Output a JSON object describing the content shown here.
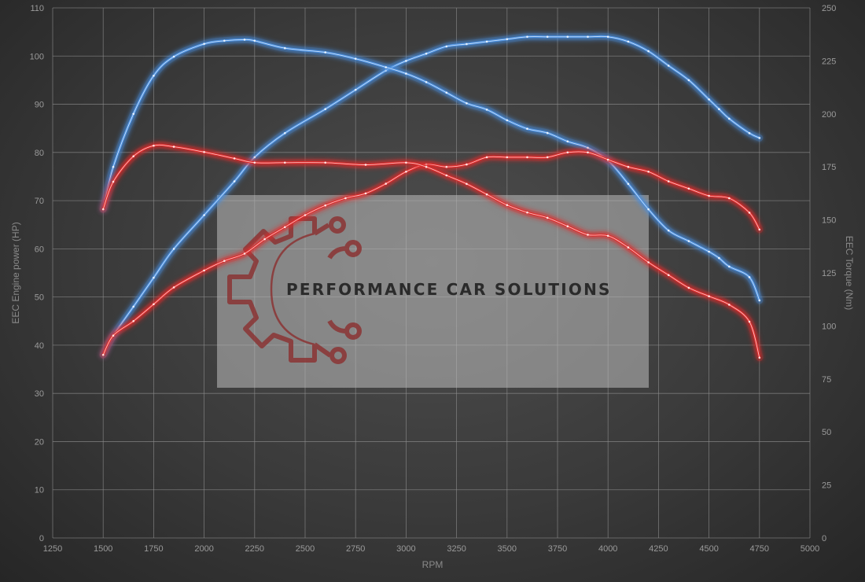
{
  "chart_data": {
    "type": "line",
    "xlabel": "RPM",
    "ylabel_left": "EEC Engine power (HP)",
    "ylabel_right": "EEC Torque (Nm)",
    "xlim": [
      1250,
      5000
    ],
    "ylim_left": [
      0,
      110
    ],
    "ylim_right": [
      0,
      250
    ],
    "x_ticks": [
      1250,
      1500,
      1750,
      2000,
      2250,
      2500,
      2750,
      3000,
      3250,
      3500,
      3750,
      4000,
      4250,
      4500,
      4750,
      5000
    ],
    "y_ticks_left": [
      0,
      10,
      20,
      30,
      40,
      50,
      60,
      70,
      80,
      90,
      100,
      110
    ],
    "y_ticks_right": [
      0,
      25,
      50,
      75,
      100,
      125,
      150,
      175,
      200,
      225,
      250
    ],
    "grid": true,
    "series": [
      {
        "axis": "left",
        "color": "#4a8fe0",
        "x": [
          1500,
          1550,
          1650,
          1750,
          1850,
          2000,
          2150,
          2250,
          2400,
          2600,
          2750,
          2900,
          3000,
          3100,
          3200,
          3300,
          3400,
          3500,
          3600,
          3700,
          3800,
          3900,
          4000,
          4100,
          4200,
          4300,
          4400,
          4500,
          4550,
          4600,
          4700,
          4750
        ],
        "y": [
          38,
          42,
          48,
          54,
          60,
          67,
          74,
          79,
          84,
          89,
          93,
          97,
          99,
          100.5,
          102,
          102.5,
          103,
          103.5,
          104,
          104,
          104,
          104,
          104,
          103,
          101,
          98,
          95,
          91,
          89,
          87,
          84,
          83
        ]
      },
      {
        "axis": "right",
        "color": "#4a8fe0",
        "x": [
          1500,
          1550,
          1650,
          1750,
          1850,
          2000,
          2100,
          2200,
          2250,
          2400,
          2600,
          2750,
          2900,
          3000,
          3100,
          3200,
          3300,
          3400,
          3500,
          3600,
          3700,
          3800,
          3900,
          4000,
          4100,
          4200,
          4300,
          4400,
          4500,
          4550,
          4600,
          4700,
          4750
        ],
        "y": [
          155,
          175,
          200,
          218,
          227,
          233,
          234.5,
          235,
          234.5,
          231,
          229,
          226,
          222,
          219,
          215,
          210,
          205,
          202,
          197,
          193,
          191,
          187,
          184,
          178,
          167,
          155,
          145,
          140,
          135,
          132,
          128,
          123,
          112
        ]
      },
      {
        "axis": "left",
        "color": "#e02a2a",
        "x": [
          1500,
          1550,
          1650,
          1750,
          1850,
          2000,
          2100,
          2200,
          2300,
          2400,
          2500,
          2600,
          2700,
          2800,
          2900,
          3000,
          3100,
          3200,
          3300,
          3400,
          3500,
          3600,
          3700,
          3800,
          3900,
          4000,
          4100,
          4200,
          4300,
          4400,
          4500,
          4600,
          4700,
          4750
        ],
        "y": [
          38,
          42,
          45,
          48.5,
          52,
          55.5,
          57.5,
          59,
          62,
          64.5,
          67,
          69,
          70.5,
          71.5,
          73.5,
          76,
          77.5,
          77,
          77.5,
          79,
          79,
          79,
          79,
          80,
          80,
          78.5,
          77,
          76,
          74,
          72.5,
          71,
          70.5,
          67.5,
          64
        ]
      },
      {
        "axis": "right",
        "color": "#e02a2a",
        "x": [
          1500,
          1550,
          1650,
          1750,
          1850,
          2000,
          2150,
          2250,
          2400,
          2600,
          2800,
          3000,
          3100,
          3200,
          3300,
          3400,
          3500,
          3600,
          3700,
          3800,
          3900,
          4000,
          4100,
          4200,
          4300,
          4400,
          4500,
          4600,
          4700,
          4750
        ],
        "y": [
          155,
          168,
          180,
          185,
          184.5,
          182,
          179,
          177,
          177,
          177,
          176,
          177,
          175,
          171,
          167,
          162,
          157,
          153.5,
          151,
          147,
          143,
          142.5,
          137,
          130,
          124,
          118,
          114,
          110,
          102,
          85
        ]
      }
    ]
  },
  "watermark": {
    "text": "PERFORMANCE CAR SOLUTIONS",
    "logo_icon": "gear-circuit-icon",
    "logo_color": "#8b2f2f"
  }
}
